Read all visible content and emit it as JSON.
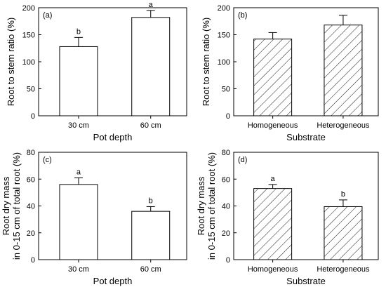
{
  "chart_data": [
    {
      "type": "bar",
      "panel_label": "(a)",
      "categories": [
        "30 cm",
        "60 cm"
      ],
      "values": [
        128,
        182
      ],
      "errors": [
        17,
        13
      ],
      "significance": [
        "b",
        "a"
      ],
      "xlabel": "Pot depth",
      "ylabel": "Root to stem ratio (%)",
      "ylim": [
        0,
        200
      ],
      "yticks": [
        0,
        50,
        100,
        150,
        200
      ],
      "fill": "open"
    },
    {
      "type": "bar",
      "panel_label": "(b)",
      "categories": [
        "Homogeneous",
        "Heterogeneous"
      ],
      "values": [
        142,
        168
      ],
      "errors": [
        12,
        18
      ],
      "significance": [
        "",
        ""
      ],
      "xlabel": "Substrate",
      "ylabel": "Root to stem ratio (%)",
      "ylim": [
        0,
        200
      ],
      "yticks": [
        0,
        50,
        100,
        150,
        200
      ],
      "fill": "hatched"
    },
    {
      "type": "bar",
      "panel_label": "(c)",
      "categories": [
        "30 cm",
        "60 cm"
      ],
      "values": [
        56,
        36
      ],
      "errors": [
        5,
        3.5
      ],
      "significance": [
        "a",
        "b"
      ],
      "xlabel": "Pot depth",
      "ylabel": "Root dry mass\nin 0-15 cm of total root (%)",
      "ylim": [
        0,
        80
      ],
      "yticks": [
        0,
        20,
        40,
        60,
        80
      ],
      "fill": "open"
    },
    {
      "type": "bar",
      "panel_label": "(d)",
      "categories": [
        "Homogeneous",
        "Heterogeneous"
      ],
      "values": [
        53,
        39.5
      ],
      "errors": [
        3,
        5
      ],
      "significance": [
        "a",
        "b"
      ],
      "xlabel": "Substrate",
      "ylabel": "Root dry mass\nin 0-15 cm of total root (%)",
      "ylim": [
        0,
        80
      ],
      "yticks": [
        0,
        20,
        40,
        60,
        80
      ],
      "fill": "hatched"
    }
  ]
}
